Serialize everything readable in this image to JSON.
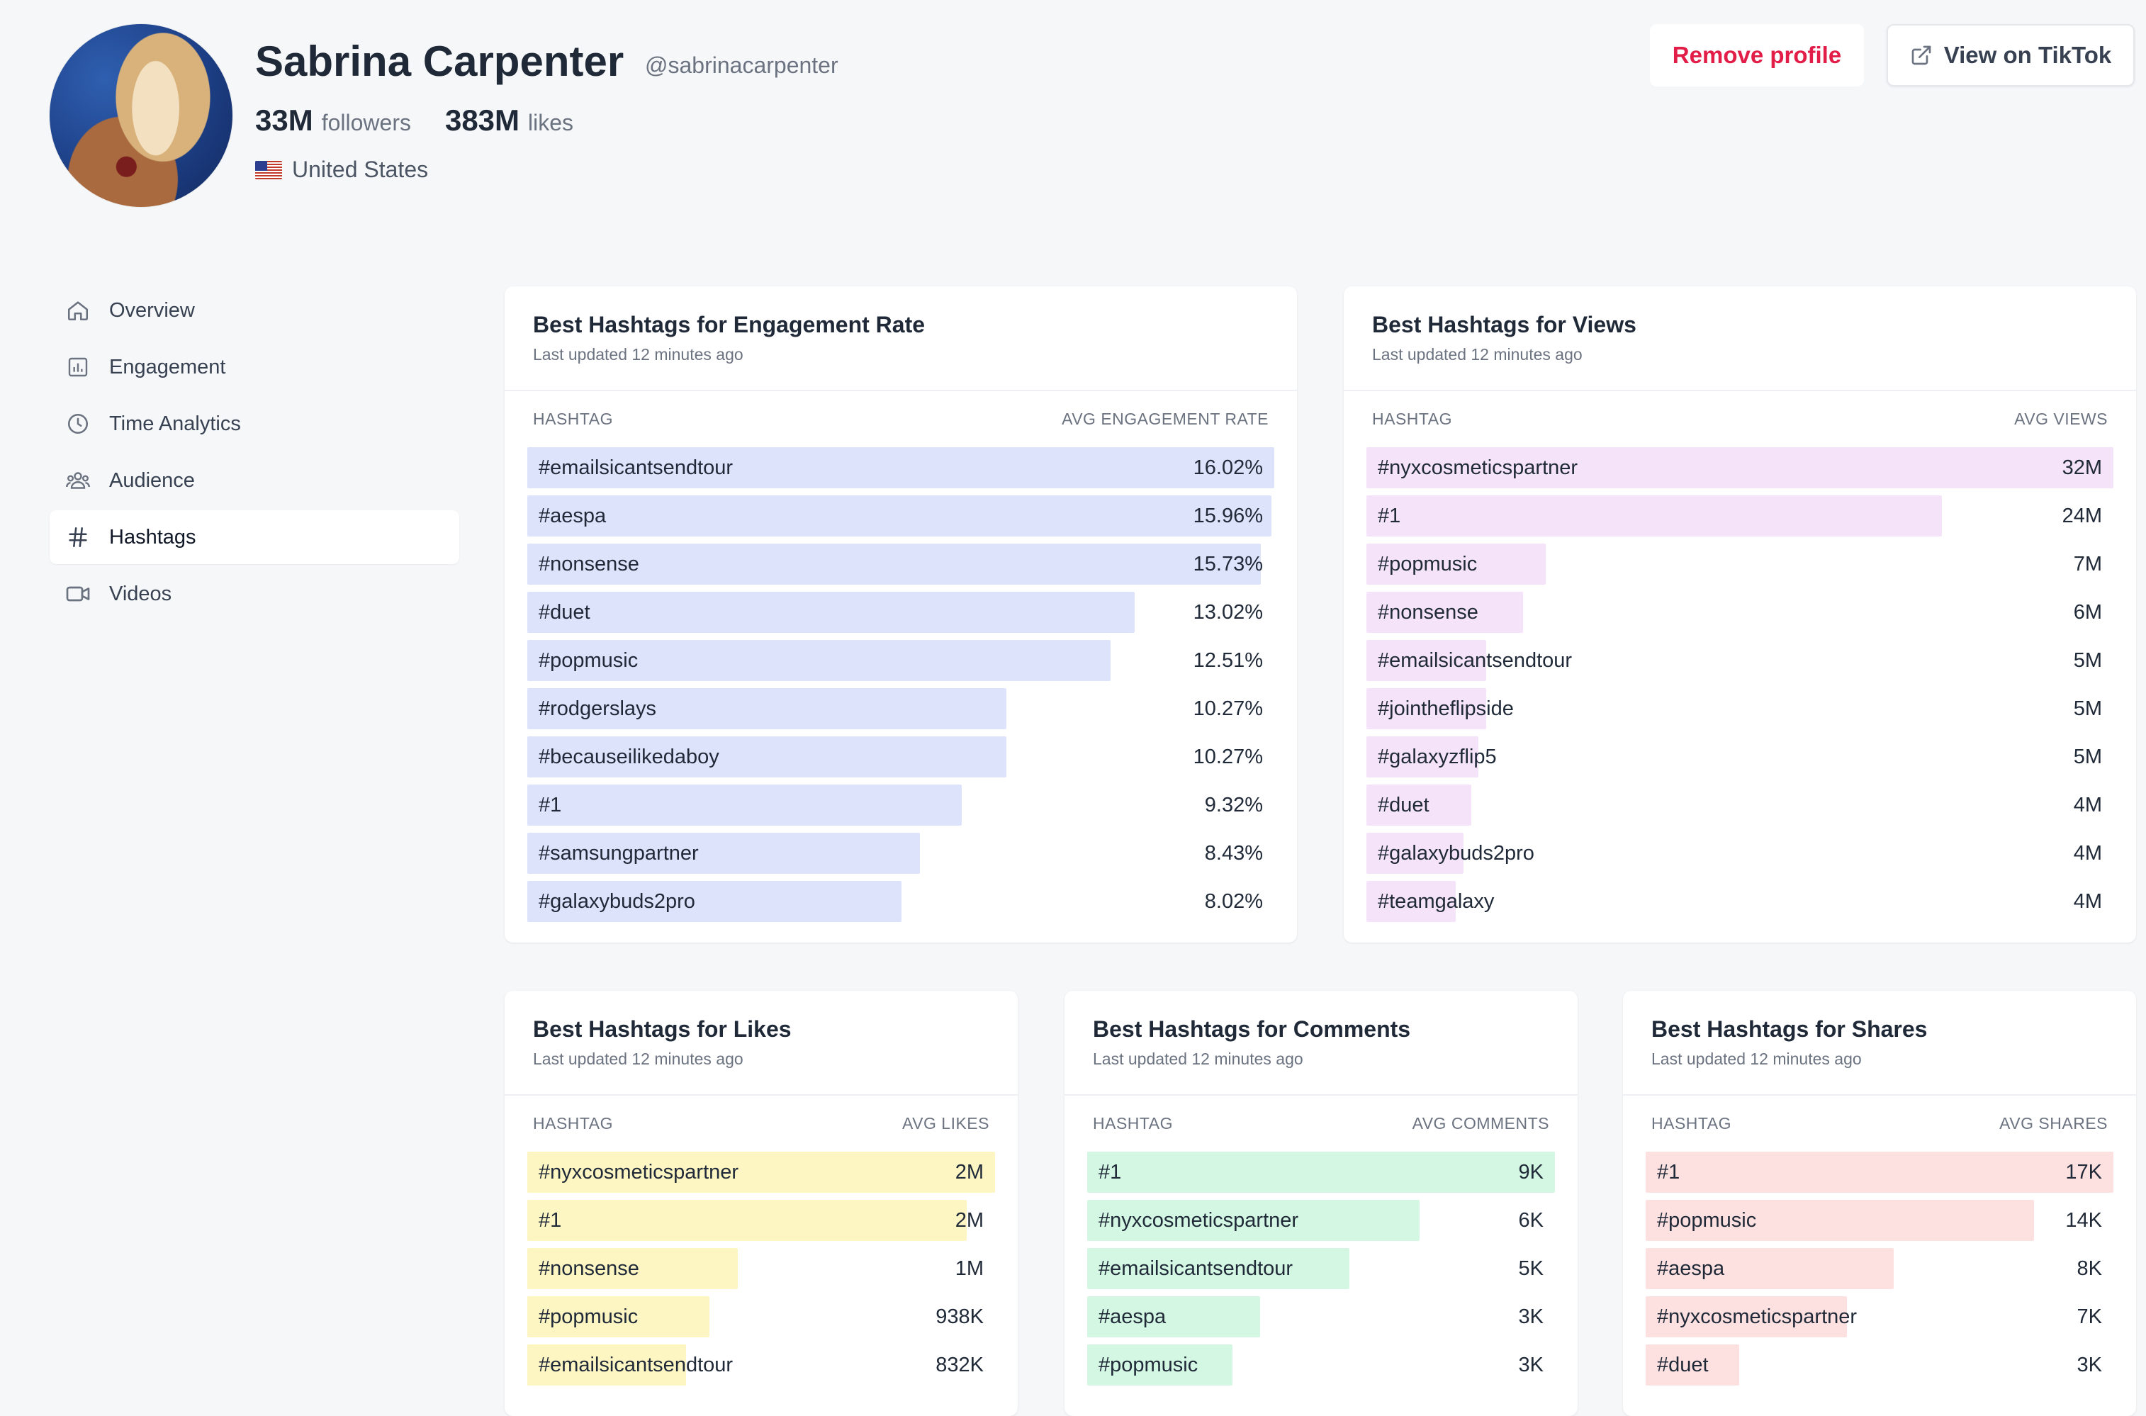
{
  "profile": {
    "name": "Sabrina Carpenter",
    "handle": "@sabrinacarpenter",
    "followers": "33M",
    "followers_label": "followers",
    "likes": "383M",
    "likes_label": "likes",
    "country": "United States"
  },
  "actions": {
    "remove_label": "Remove profile",
    "view_label": "View on TikTok"
  },
  "sidebar": {
    "items": [
      {
        "label": "Overview",
        "icon": "home-icon",
        "active": false
      },
      {
        "label": "Engagement",
        "icon": "bar-chart-icon",
        "active": false
      },
      {
        "label": "Time Analytics",
        "icon": "clock-icon",
        "active": false
      },
      {
        "label": "Audience",
        "icon": "users-icon",
        "active": false
      },
      {
        "label": "Hashtags",
        "icon": "hash-icon",
        "active": true
      },
      {
        "label": "Videos",
        "icon": "video-icon",
        "active": false
      }
    ]
  },
  "colors": {
    "engagement": "#dde3fb",
    "views": "#f5e3fa",
    "likes": "#fdf6c3",
    "comments": "#d4f7e3",
    "shares": "#fde0e0"
  },
  "cards": {
    "engagement": {
      "title": "Best Hashtags for Engagement Rate",
      "updated": "Last updated 12 minutes ago",
      "col_tag": "HASHTAG",
      "col_value": "AVG ENGAGEMENT RATE",
      "rows": [
        {
          "tag": "#emailsicantsendtour",
          "value": "16.02%",
          "ratio": 1.0
        },
        {
          "tag": "#aespa",
          "value": "15.96%",
          "ratio": 0.996
        },
        {
          "tag": "#nonsense",
          "value": "15.73%",
          "ratio": 0.982
        },
        {
          "tag": "#duet",
          "value": "13.02%",
          "ratio": 0.813
        },
        {
          "tag": "#popmusic",
          "value": "12.51%",
          "ratio": 0.781
        },
        {
          "tag": "#rodgerslays",
          "value": "10.27%",
          "ratio": 0.641
        },
        {
          "tag": "#becauseilikedaboy",
          "value": "10.27%",
          "ratio": 0.641
        },
        {
          "tag": "#1",
          "value": "9.32%",
          "ratio": 0.582
        },
        {
          "tag": "#samsungpartner",
          "value": "8.43%",
          "ratio": 0.526
        },
        {
          "tag": "#galaxybuds2pro",
          "value": "8.02%",
          "ratio": 0.501
        }
      ]
    },
    "views": {
      "title": "Best Hashtags for Views",
      "updated": "Last updated 12 minutes ago",
      "col_tag": "HASHTAG",
      "col_value": "AVG VIEWS",
      "rows": [
        {
          "tag": "#nyxcosmeticspartner",
          "value": "32M",
          "ratio": 1.0
        },
        {
          "tag": "#1",
          "value": "24M",
          "ratio": 0.77
        },
        {
          "tag": "#popmusic",
          "value": "7M",
          "ratio": 0.24
        },
        {
          "tag": "#nonsense",
          "value": "6M",
          "ratio": 0.21
        },
        {
          "tag": "#emailsicantsendtour",
          "value": "5M",
          "ratio": 0.16
        },
        {
          "tag": "#jointheflipside",
          "value": "5M",
          "ratio": 0.16
        },
        {
          "tag": "#galaxyzflip5",
          "value": "5M",
          "ratio": 0.15
        },
        {
          "tag": "#duet",
          "value": "4M",
          "ratio": 0.14
        },
        {
          "tag": "#galaxybuds2pro",
          "value": "4M",
          "ratio": 0.13
        },
        {
          "tag": "#teamgalaxy",
          "value": "4M",
          "ratio": 0.12
        }
      ]
    },
    "likes": {
      "title": "Best Hashtags for Likes",
      "updated": "Last updated 12 minutes ago",
      "col_tag": "HASHTAG",
      "col_value": "AVG LIKES",
      "rows": [
        {
          "tag": "#nyxcosmeticspartner",
          "value": "2M",
          "ratio": 1.0
        },
        {
          "tag": "#1",
          "value": "2M",
          "ratio": 0.94
        },
        {
          "tag": "#nonsense",
          "value": "1M",
          "ratio": 0.45
        },
        {
          "tag": "#popmusic",
          "value": "938K",
          "ratio": 0.39
        },
        {
          "tag": "#emailsicantsendtour",
          "value": "832K",
          "ratio": 0.34
        }
      ]
    },
    "comments": {
      "title": "Best Hashtags for Comments",
      "updated": "Last updated 12 minutes ago",
      "col_tag": "HASHTAG",
      "col_value": "AVG COMMENTS",
      "rows": [
        {
          "tag": "#1",
          "value": "9K",
          "ratio": 1.0
        },
        {
          "tag": "#nyxcosmeticspartner",
          "value": "6K",
          "ratio": 0.71
        },
        {
          "tag": "#emailsicantsendtour",
          "value": "5K",
          "ratio": 0.56
        },
        {
          "tag": "#aespa",
          "value": "3K",
          "ratio": 0.37
        },
        {
          "tag": "#popmusic",
          "value": "3K",
          "ratio": 0.31
        }
      ]
    },
    "shares": {
      "title": "Best Hashtags for Shares",
      "updated": "Last updated 12 minutes ago",
      "col_tag": "HASHTAG",
      "col_value": "AVG SHARES",
      "rows": [
        {
          "tag": "#1",
          "value": "17K",
          "ratio": 1.0
        },
        {
          "tag": "#popmusic",
          "value": "14K",
          "ratio": 0.83
        },
        {
          "tag": "#aespa",
          "value": "8K",
          "ratio": 0.53
        },
        {
          "tag": "#nyxcosmeticspartner",
          "value": "7K",
          "ratio": 0.43
        },
        {
          "tag": "#duet",
          "value": "3K",
          "ratio": 0.2
        }
      ]
    }
  }
}
